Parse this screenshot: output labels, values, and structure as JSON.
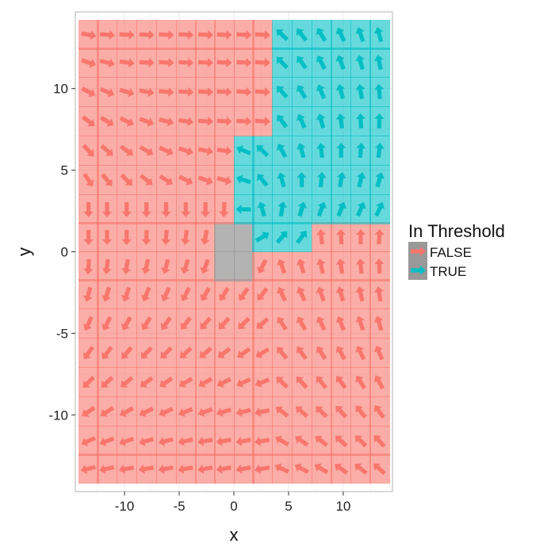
{
  "chart_data": {
    "type": "vector-field-tiles",
    "xlabel": "x",
    "ylabel": "y",
    "xlim": [
      -14.5,
      14.5
    ],
    "ylim": [
      -14.7,
      14.7
    ],
    "x_ticks": [
      -10,
      -5,
      0,
      5,
      10
    ],
    "y_ticks": [
      -10,
      -5,
      0,
      5,
      10
    ],
    "x_tick_labels": [
      "-10",
      "-5",
      "0",
      "5",
      "10"
    ],
    "y_tick_labels": [
      "-10",
      "-5",
      "0",
      "5",
      "10"
    ],
    "grid": true,
    "legend": {
      "title": "In Threshold",
      "placement": "right",
      "entries": [
        {
          "label": "FALSE",
          "color": "#F8766D"
        },
        {
          "label": "TRUE",
          "color": "#00BFC4"
        }
      ]
    },
    "grid_x": [
      -13.3,
      -11.6,
      -9.8,
      -8.0,
      -6.2,
      -4.4,
      -2.6,
      -0.9,
      0.9,
      2.6,
      4.4,
      6.2,
      8.0,
      9.8,
      11.6,
      13.3
    ],
    "grid_y": [
      -13.3,
      -11.6,
      -9.8,
      -8.0,
      -6.2,
      -4.4,
      -2.6,
      -0.9,
      0.9,
      2.6,
      4.4,
      6.2,
      8.0,
      9.8,
      11.6,
      13.3
    ],
    "in_threshold_region": [
      {
        "x": [
          2.7,
          13.3
        ],
        "y": [
          6.3,
          13.4
        ]
      },
      {
        "x": [
          0.9,
          13.3
        ],
        "y": [
          2.6,
          6.3
        ]
      },
      {
        "x": [
          0.9,
          6.3
        ],
        "y": [
          0.9,
          2.6
        ]
      }
    ],
    "not_computed_cell": {
      "x": [
        -0.9,
        0.9
      ],
      "y": [
        -0.9,
        0.9
      ]
    },
    "colors": {
      "false_arrow": "#F8766D",
      "true_arrow": "#00BFC4",
      "false_tile": "#F8766D",
      "true_tile": "#00BFC4",
      "na_tile": "#999999",
      "panel_bg": "#ffffff",
      "grid_line": "#ebebeb",
      "border": "#b3b3b3"
    }
  }
}
